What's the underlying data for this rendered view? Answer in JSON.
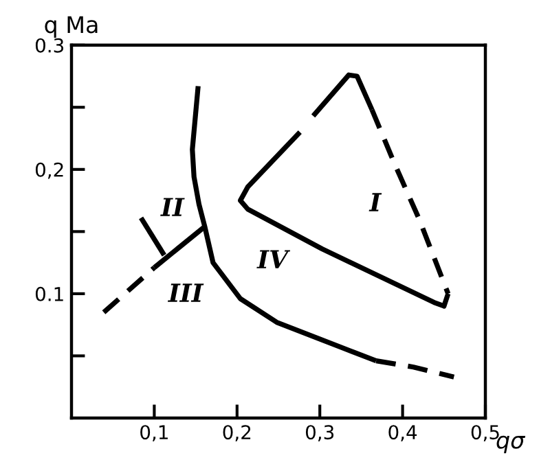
{
  "chart_data": {
    "type": "line",
    "xlabel": "qσ",
    "ylabel": "q Ma",
    "xlim": [
      0,
      0.5
    ],
    "ylim": [
      0,
      0.3
    ],
    "xticks": [
      {
        "value": 0.1,
        "label": "0,1"
      },
      {
        "value": 0.2,
        "label": "0,2"
      },
      {
        "value": 0.3,
        "label": "0,3"
      },
      {
        "value": 0.4,
        "label": "0,4"
      },
      {
        "value": 0.5,
        "label": "0,5"
      }
    ],
    "yticks": [
      {
        "value": 0.05,
        "label": null
      },
      {
        "value": 0.1,
        "label": "0.1"
      },
      {
        "value": 0.15,
        "label": null
      },
      {
        "value": 0.2,
        "label": "0,2"
      },
      {
        "value": 0.25,
        "label": null
      },
      {
        "value": 0.3,
        "label": "0.3"
      }
    ],
    "grid": false,
    "legend": false,
    "marker": "none",
    "series": [
      {
        "color": "#000000",
        "line_style": "solid",
        "x": [
          0.153,
          0.146,
          0.148,
          0.154,
          0.161,
          0.171,
          0.204,
          0.248,
          0.302,
          0.368
        ],
        "values": [
          0.267,
          0.216,
          0.194,
          0.172,
          0.154,
          0.125,
          0.096,
          0.077,
          0.063,
          0.046
        ]
      },
      {
        "color": "#000000",
        "line_style": "dashed",
        "x": [
          0.368,
          0.413,
          0.462
        ],
        "values": [
          0.046,
          0.041,
          0.033
        ]
      },
      {
        "color": "#000000",
        "line_style": "dashed",
        "x": [
          0.039,
          0.1
        ],
        "values": [
          0.085,
          0.121
        ]
      },
      {
        "color": "#000000",
        "line_style": "solid",
        "x": [
          0.1,
          0.161
        ],
        "values": [
          0.121,
          0.154
        ]
      },
      {
        "color": "#000000",
        "line_style": "solid",
        "x": [
          0.084,
          0.112
        ],
        "values": [
          0.161,
          0.131
        ]
      },
      {
        "color": "#000000",
        "line_style": "solid",
        "x": [
          0.455,
          0.45,
          0.438,
          0.303,
          0.213,
          0.204,
          0.213,
          0.276,
          0.284,
          0.292,
          0.335,
          0.345,
          0.363
        ],
        "values": [
          0.1,
          0.09,
          0.093,
          0.136,
          0.168,
          0.175,
          0.186,
          0.23,
          null,
          0.243,
          0.276,
          0.275,
          0.248
        ]
      },
      {
        "color": "#000000",
        "line_style": "dashed",
        "x": [
          0.363,
          0.39,
          0.42,
          0.455
        ],
        "values": [
          0.248,
          0.205,
          0.16,
          0.1
        ]
      }
    ],
    "annotations": [
      "I",
      "II",
      "III",
      "IV"
    ]
  }
}
